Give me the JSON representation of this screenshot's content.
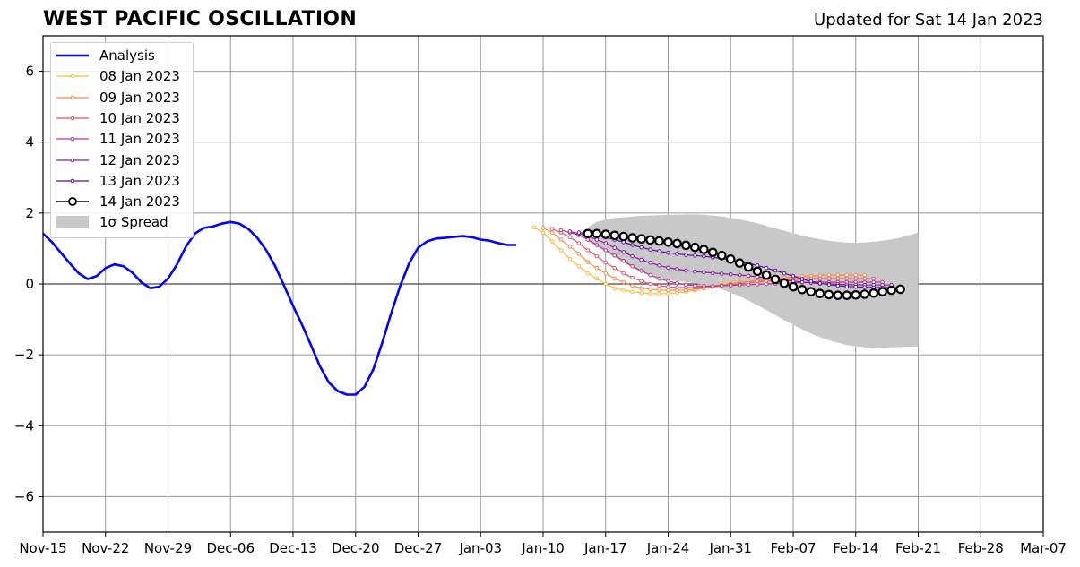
{
  "header": {
    "title": "WEST PACIFIC OSCILLATION",
    "updated": "Updated for Sat 14 Jan 2023"
  },
  "chart_data": {
    "type": "line",
    "x_ticks": [
      "Nov-15",
      "Nov-22",
      "Nov-29",
      "Dec-06",
      "Dec-13",
      "Dec-20",
      "Dec-27",
      "Jan-03",
      "Jan-10",
      "Jan-17",
      "Jan-24",
      "Jan-31",
      "Feb-07",
      "Feb-14",
      "Feb-21",
      "Feb-28",
      "Mar-07"
    ],
    "y_ticks": [
      "6",
      "4",
      "2",
      "0",
      "−2",
      "−4",
      "−6"
    ],
    "ylim": [
      -7,
      7
    ],
    "grid": true,
    "legend_position": "top-left",
    "colors": {
      "analysis": "#0000ff",
      "spread": "#c8c8c8",
      "f08": "#fbb935",
      "f09": "#f48a4a",
      "f10": "#e0566a",
      "f11": "#b8378a",
      "f12": "#8a1aa0",
      "f13": "#5a0ca0",
      "f14": "#000000"
    },
    "legend": [
      {
        "key": "analysis",
        "label": "Analysis"
      },
      {
        "key": "f08",
        "label": "08 Jan 2023"
      },
      {
        "key": "f09",
        "label": "09 Jan 2023"
      },
      {
        "key": "f10",
        "label": "10 Jan 2023"
      },
      {
        "key": "f11",
        "label": "11 Jan 2023"
      },
      {
        "key": "f12",
        "label": "12 Jan 2023"
      },
      {
        "key": "f13",
        "label": "13 Jan 2023"
      },
      {
        "key": "f14",
        "label": "14 Jan 2023"
      },
      {
        "key": "spread",
        "label": "1σ Spread"
      }
    ],
    "analysis": {
      "start_date": "Nov-15",
      "values": [
        1.42,
        1.18,
        0.88,
        0.58,
        0.3,
        0.14,
        0.22,
        0.45,
        0.55,
        0.5,
        0.32,
        0.05,
        -0.12,
        -0.08,
        0.15,
        0.55,
        1.05,
        1.42,
        1.58,
        1.62,
        1.7,
        1.75,
        1.7,
        1.55,
        1.3,
        0.95,
        0.5,
        -0.05,
        -0.62,
        -1.15,
        -1.72,
        -2.32,
        -2.78,
        -3.02,
        -3.12,
        -3.12,
        -2.9,
        -2.4,
        -1.65,
        -0.82,
        -0.05,
        0.58,
        1.02,
        1.2,
        1.28,
        1.3,
        1.33,
        1.35,
        1.32,
        1.25,
        1.22,
        1.15,
        1.1,
        1.1
      ]
    },
    "forecasts": [
      {
        "key": "f08",
        "start": "Jan-09",
        "values": [
          1.6,
          1.45,
          1.2,
          0.95,
          0.7,
          0.5,
          0.3,
          0.15,
          0.0,
          -0.12,
          -0.18,
          -0.22,
          -0.25,
          -0.27,
          -0.28,
          -0.27,
          -0.25,
          -0.22,
          -0.18,
          -0.12,
          -0.06,
          0.0,
          0.03,
          0.05,
          0.06,
          0.08,
          0.1,
          0.12,
          0.15,
          0.18,
          0.2,
          0.22,
          0.24,
          0.25,
          0.25,
          0.25,
          0.25
        ]
      },
      {
        "key": "f09",
        "start": "Jan-10",
        "values": [
          1.58,
          1.45,
          1.25,
          1.05,
          0.85,
          0.62,
          0.45,
          0.3,
          0.15,
          0.05,
          -0.05,
          -0.12,
          -0.15,
          -0.17,
          -0.18,
          -0.18,
          -0.17,
          -0.15,
          -0.12,
          -0.08,
          -0.05,
          0.0,
          0.04,
          0.08,
          0.1,
          0.12,
          0.15,
          0.18,
          0.2,
          0.22,
          0.23,
          0.24,
          0.25,
          0.25,
          0.25,
          0.25,
          0.25
        ]
      },
      {
        "key": "f10",
        "start": "Jan-11",
        "values": [
          1.55,
          1.45,
          1.32,
          1.15,
          0.95,
          0.78,
          0.6,
          0.45,
          0.3,
          0.18,
          0.08,
          0.0,
          -0.05,
          -0.08,
          -0.1,
          -0.1,
          -0.1,
          -0.08,
          -0.06,
          -0.04,
          -0.02,
          0.0,
          0.03,
          0.06,
          0.08,
          0.1,
          0.12,
          0.13,
          0.14,
          0.15,
          0.15,
          0.15,
          0.15,
          0.15,
          0.15,
          0.15,
          0.15
        ]
      },
      {
        "key": "f11",
        "start": "Jan-12",
        "values": [
          1.52,
          1.45,
          1.38,
          1.25,
          1.1,
          0.95,
          0.8,
          0.65,
          0.5,
          0.37,
          0.25,
          0.15,
          0.08,
          0.02,
          -0.02,
          -0.05,
          -0.06,
          -0.06,
          -0.05,
          -0.04,
          -0.03,
          -0.02,
          -0.01,
          0.0,
          0.01,
          0.02,
          0.03,
          0.04,
          0.05,
          0.05,
          0.05,
          0.05,
          0.05,
          0.05,
          0.05,
          0.05,
          0.05
        ]
      },
      {
        "key": "f12",
        "start": "Jan-13",
        "values": [
          1.48,
          1.42,
          1.35,
          1.25,
          1.15,
          1.02,
          0.9,
          0.78,
          0.68,
          0.6,
          0.52,
          0.46,
          0.42,
          0.38,
          0.35,
          0.33,
          0.31,
          0.29,
          0.27,
          0.25,
          0.23,
          0.2,
          0.17,
          0.14,
          0.11,
          0.08,
          0.05,
          0.03,
          0.01,
          0.0,
          -0.01,
          -0.02,
          -0.02,
          -0.03,
          -0.03,
          -0.03,
          -0.03
        ]
      },
      {
        "key": "f13",
        "start": "Jan-14",
        "values": [
          1.45,
          1.42,
          1.38,
          1.32,
          1.25,
          1.18,
          1.1,
          1.03,
          0.97,
          0.92,
          0.88,
          0.85,
          0.82,
          0.8,
          0.78,
          0.75,
          0.72,
          0.68,
          0.63,
          0.58,
          0.52,
          0.45,
          0.38,
          0.3,
          0.22,
          0.14,
          0.07,
          0.02,
          -0.02,
          -0.05,
          -0.07,
          -0.08,
          -0.09,
          -0.1,
          -0.1,
          -0.1,
          -0.1
        ]
      },
      {
        "key": "f14",
        "start": "Jan-15",
        "values": [
          1.42,
          1.42,
          1.4,
          1.37,
          1.34,
          1.3,
          1.27,
          1.24,
          1.21,
          1.18,
          1.14,
          1.09,
          1.03,
          0.97,
          0.89,
          0.8,
          0.7,
          0.59,
          0.48,
          0.36,
          0.25,
          0.13,
          0.02,
          -0.08,
          -0.16,
          -0.22,
          -0.27,
          -0.3,
          -0.32,
          -0.32,
          -0.31,
          -0.29,
          -0.26,
          -0.22,
          -0.18,
          -0.15
        ]
      }
    ],
    "spread": {
      "start": "Jan-15",
      "upper": [
        1.6,
        1.75,
        1.82,
        1.86,
        1.88,
        1.9,
        1.92,
        1.93,
        1.94,
        1.95,
        1.95,
        1.96,
        1.96,
        1.95,
        1.93,
        1.9,
        1.86,
        1.82,
        1.77,
        1.71,
        1.64,
        1.57,
        1.5,
        1.43,
        1.37,
        1.31,
        1.26,
        1.22,
        1.19,
        1.17,
        1.16,
        1.17,
        1.19,
        1.22,
        1.26,
        1.31,
        1.38,
        1.45
      ],
      "lower": [
        1.2,
        1.05,
        0.9,
        0.75,
        0.6,
        0.45,
        0.35,
        0.25,
        0.18,
        0.12,
        0.08,
        0.05,
        0.02,
        -0.02,
        -0.08,
        -0.15,
        -0.25,
        -0.35,
        -0.47,
        -0.6,
        -0.74,
        -0.88,
        -1.02,
        -1.15,
        -1.28,
        -1.4,
        -1.5,
        -1.59,
        -1.66,
        -1.72,
        -1.76,
        -1.79,
        -1.8,
        -1.8,
        -1.79,
        -1.78,
        -1.77,
        -1.76
      ]
    }
  }
}
